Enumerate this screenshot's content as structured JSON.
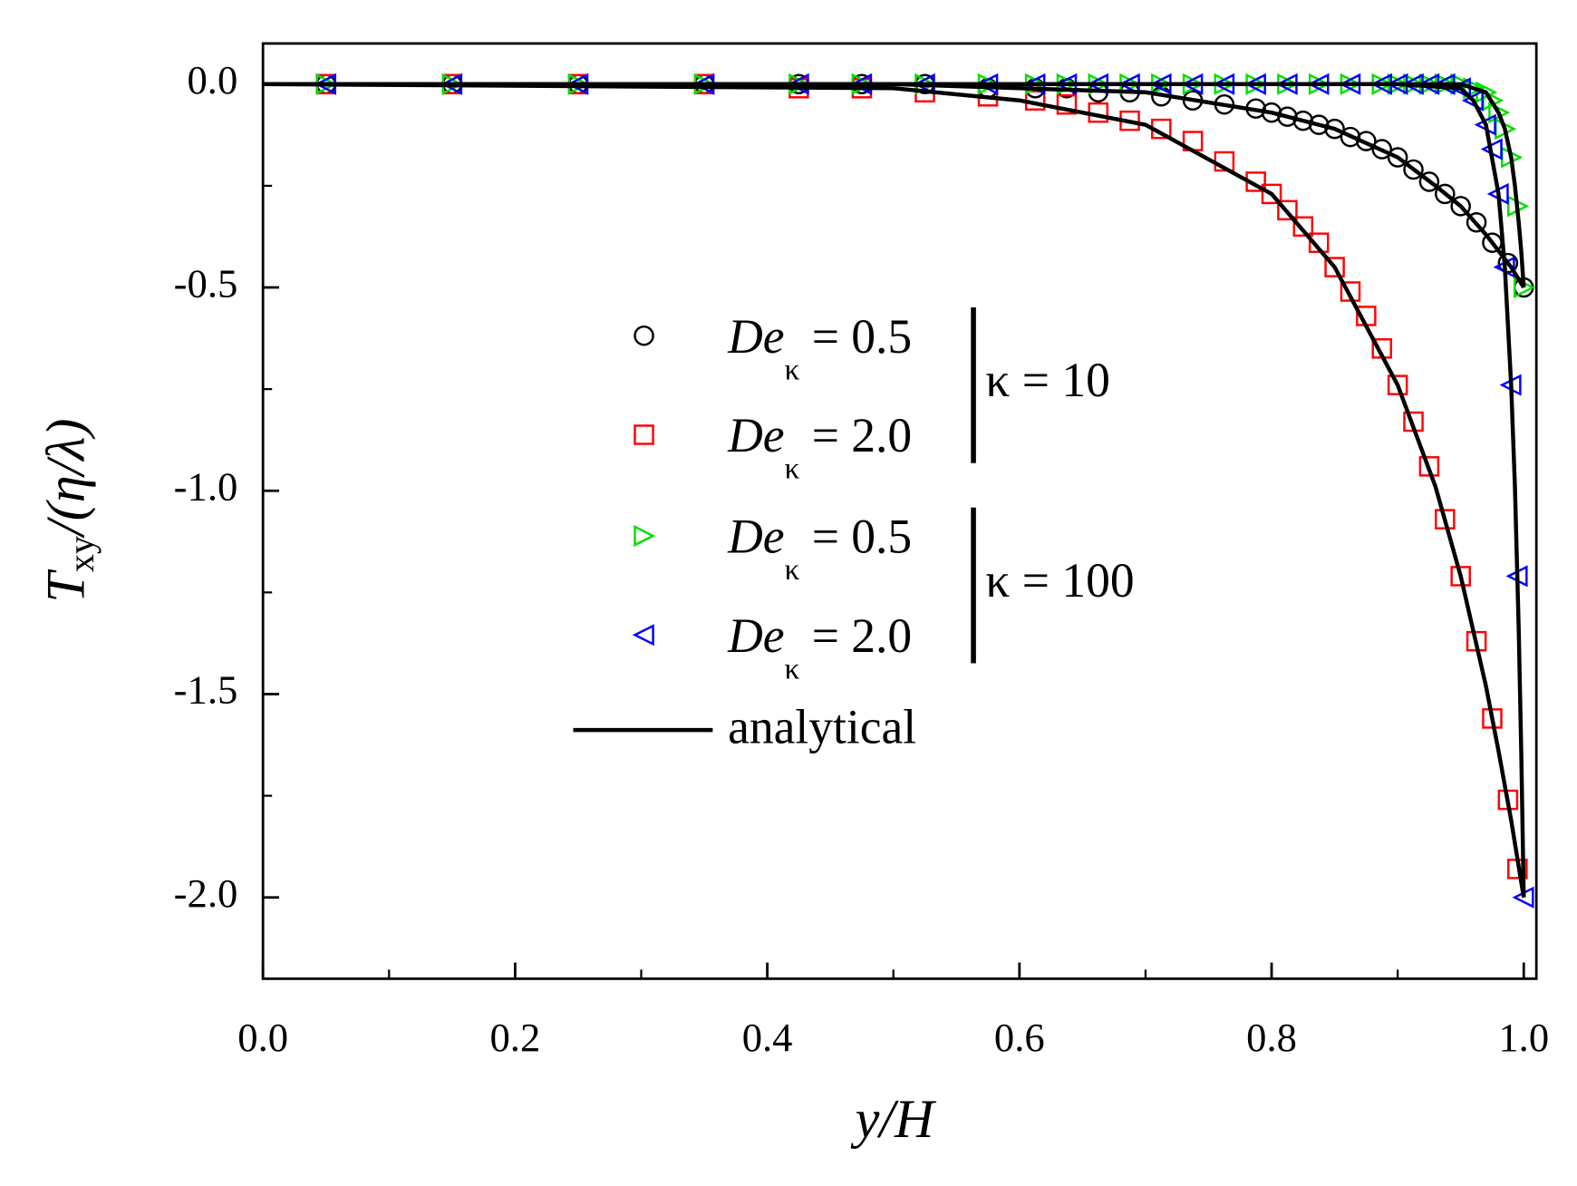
{
  "chart_data": {
    "type": "scatter",
    "xlabel": {
      "main": "y/H"
    },
    "ylabel": {
      "main": "T",
      "sub": "xy",
      "rest": "/(η/λ)"
    },
    "xlim": [
      0,
      1.01
    ],
    "ylim": [
      -2.2,
      0.1
    ],
    "xticks": [
      {
        "value": 0,
        "label": "0.0"
      },
      {
        "value": 0.2,
        "label": "0.2"
      },
      {
        "value": 0.4,
        "label": "0.4"
      },
      {
        "value": 0.6,
        "label": "0.6"
      },
      {
        "value": 0.8,
        "label": "0.8"
      },
      {
        "value": 1,
        "label": "1.0"
      }
    ],
    "yticks": [
      {
        "value": 0,
        "label": "0.0"
      },
      {
        "value": -0.5,
        "label": "-0.5"
      },
      {
        "value": -1,
        "label": "-1.0"
      },
      {
        "value": -1.5,
        "label": "-1.5"
      },
      {
        "value": -2,
        "label": "-2.0"
      }
    ],
    "x_minor_step": 0.1,
    "y_minor_step": 0.25,
    "groups": [
      {
        "label": "κ = 10"
      },
      {
        "label": "κ = 100"
      }
    ],
    "series": [
      {
        "name": "De",
        "name_sub": "κ",
        "name_rest": "= 0.5",
        "group": 0,
        "marker": "circle",
        "color": "#000000",
        "x": [
          0.05,
          0.15,
          0.25,
          0.35,
          0.425,
          0.475,
          0.525,
          0.575,
          0.6125,
          0.6375,
          0.6625,
          0.6875,
          0.7125,
          0.7375,
          0.7625,
          0.7875,
          0.8,
          0.8125,
          0.825,
          0.8375,
          0.85,
          0.8625,
          0.875,
          0.8875,
          0.9,
          0.9125,
          0.925,
          0.9375,
          0.95,
          0.9625,
          0.975,
          0.9875,
          1.0
        ],
        "values": [
          0,
          0,
          0,
          0,
          0,
          0,
          0,
          -0.01,
          -0.01,
          -0.01,
          -0.02,
          -0.02,
          -0.03,
          -0.04,
          -0.05,
          -0.06,
          -0.07,
          -0.08,
          -0.09,
          -0.1,
          -0.11,
          -0.13,
          -0.14,
          -0.16,
          -0.18,
          -0.21,
          -0.24,
          -0.27,
          -0.3,
          -0.34,
          -0.39,
          -0.44,
          -0.5
        ]
      },
      {
        "name": "De",
        "name_sub": "κ",
        "name_rest": "= 2.0",
        "group": 0,
        "marker": "square",
        "color": "#ff0000",
        "x": [
          0.05,
          0.15,
          0.25,
          0.35,
          0.425,
          0.475,
          0.525,
          0.575,
          0.6125,
          0.6375,
          0.6625,
          0.6875,
          0.7125,
          0.7375,
          0.7625,
          0.7875,
          0.8,
          0.8125,
          0.825,
          0.8375,
          0.85,
          0.8625,
          0.875,
          0.8875,
          0.9,
          0.9125,
          0.925,
          0.9375,
          0.95,
          0.9625,
          0.975,
          0.9875,
          0.995
        ],
        "values": [
          0,
          0,
          0,
          0,
          -0.01,
          -0.01,
          -0.02,
          -0.03,
          -0.04,
          -0.05,
          -0.07,
          -0.09,
          -0.11,
          -0.14,
          -0.19,
          -0.24,
          -0.27,
          -0.31,
          -0.35,
          -0.39,
          -0.45,
          -0.51,
          -0.57,
          -0.65,
          -0.74,
          -0.83,
          -0.94,
          -1.07,
          -1.21,
          -1.37,
          -1.56,
          -1.76,
          -1.93
        ]
      },
      {
        "name": "De",
        "name_sub": "κ",
        "name_rest": "= 0.5",
        "group": 1,
        "marker": "triangle-right",
        "color": "#00e000",
        "x": [
          0.05,
          0.15,
          0.25,
          0.35,
          0.425,
          0.475,
          0.525,
          0.575,
          0.6125,
          0.6375,
          0.6625,
          0.6875,
          0.7125,
          0.7375,
          0.7625,
          0.7875,
          0.8125,
          0.8375,
          0.8625,
          0.8875,
          0.9,
          0.9125,
          0.925,
          0.9375,
          0.95,
          0.96,
          0.97,
          0.975,
          0.98,
          0.985,
          0.99,
          0.995,
          1.0
        ],
        "values": [
          0,
          0,
          0,
          0,
          0,
          0,
          0,
          0,
          0,
          0,
          0,
          0,
          0,
          0,
          0,
          0,
          0,
          0,
          0,
          0,
          0,
          0,
          0,
          0,
          0,
          -0.01,
          -0.02,
          -0.04,
          -0.07,
          -0.11,
          -0.18,
          -0.3,
          -0.5
        ]
      },
      {
        "name": "De",
        "name_sub": "κ",
        "name_rest": "= 2.0",
        "group": 1,
        "marker": "triangle-left",
        "color": "#0000ff",
        "x": [
          0.05,
          0.15,
          0.25,
          0.35,
          0.425,
          0.475,
          0.525,
          0.575,
          0.6125,
          0.6375,
          0.6625,
          0.6875,
          0.7125,
          0.7375,
          0.7625,
          0.7875,
          0.8125,
          0.8375,
          0.8625,
          0.8875,
          0.9,
          0.9125,
          0.925,
          0.9375,
          0.95,
          0.96,
          0.97,
          0.975,
          0.98,
          0.985,
          0.99,
          0.995,
          1.0
        ],
        "values": [
          0,
          0,
          0,
          0,
          0,
          0,
          0,
          0,
          0,
          0,
          0,
          0,
          0,
          0,
          0,
          0,
          0,
          0,
          0,
          0,
          0,
          0,
          0,
          0,
          -0.01,
          -0.04,
          -0.1,
          -0.16,
          -0.27,
          -0.45,
          -0.74,
          -1.21,
          -2.0
        ]
      }
    ],
    "analytical": {
      "name": "analytical",
      "color": "#000000",
      "curves": [
        {
          "x": [
            0,
            0.5,
            0.6,
            0.7,
            0.8,
            0.85,
            0.9,
            0.93,
            0.95,
            0.97,
            0.98,
            0.99,
            1.0
          ],
          "values": [
            0,
            0,
            -0.01,
            -0.02,
            -0.07,
            -0.11,
            -0.18,
            -0.25,
            -0.3,
            -0.37,
            -0.41,
            -0.45,
            -0.5
          ]
        },
        {
          "x": [
            0,
            0.5,
            0.6,
            0.7,
            0.8,
            0.85,
            0.9,
            0.93,
            0.95,
            0.97,
            0.98,
            0.99,
            1.0
          ],
          "values": [
            0,
            -0.01,
            -0.04,
            -0.1,
            -0.27,
            -0.45,
            -0.74,
            -0.99,
            -1.21,
            -1.48,
            -1.64,
            -1.81,
            -2.0
          ]
        },
        {
          "x": [
            0,
            0.9,
            0.95,
            0.96,
            0.97,
            0.98,
            0.985,
            0.99,
            0.993,
            0.996,
            0.998,
            1.0
          ],
          "values": [
            0,
            0,
            0,
            -0.01,
            -0.02,
            -0.07,
            -0.11,
            -0.18,
            -0.25,
            -0.34,
            -0.41,
            -0.5
          ]
        },
        {
          "x": [
            0,
            0.9,
            0.95,
            0.96,
            0.97,
            0.98,
            0.985,
            0.99,
            0.993,
            0.996,
            0.998,
            1.0
          ],
          "values": [
            0,
            0,
            -0.01,
            -0.04,
            -0.1,
            -0.27,
            -0.45,
            -0.74,
            -0.99,
            -1.34,
            -1.64,
            -2.0
          ]
        }
      ]
    }
  }
}
